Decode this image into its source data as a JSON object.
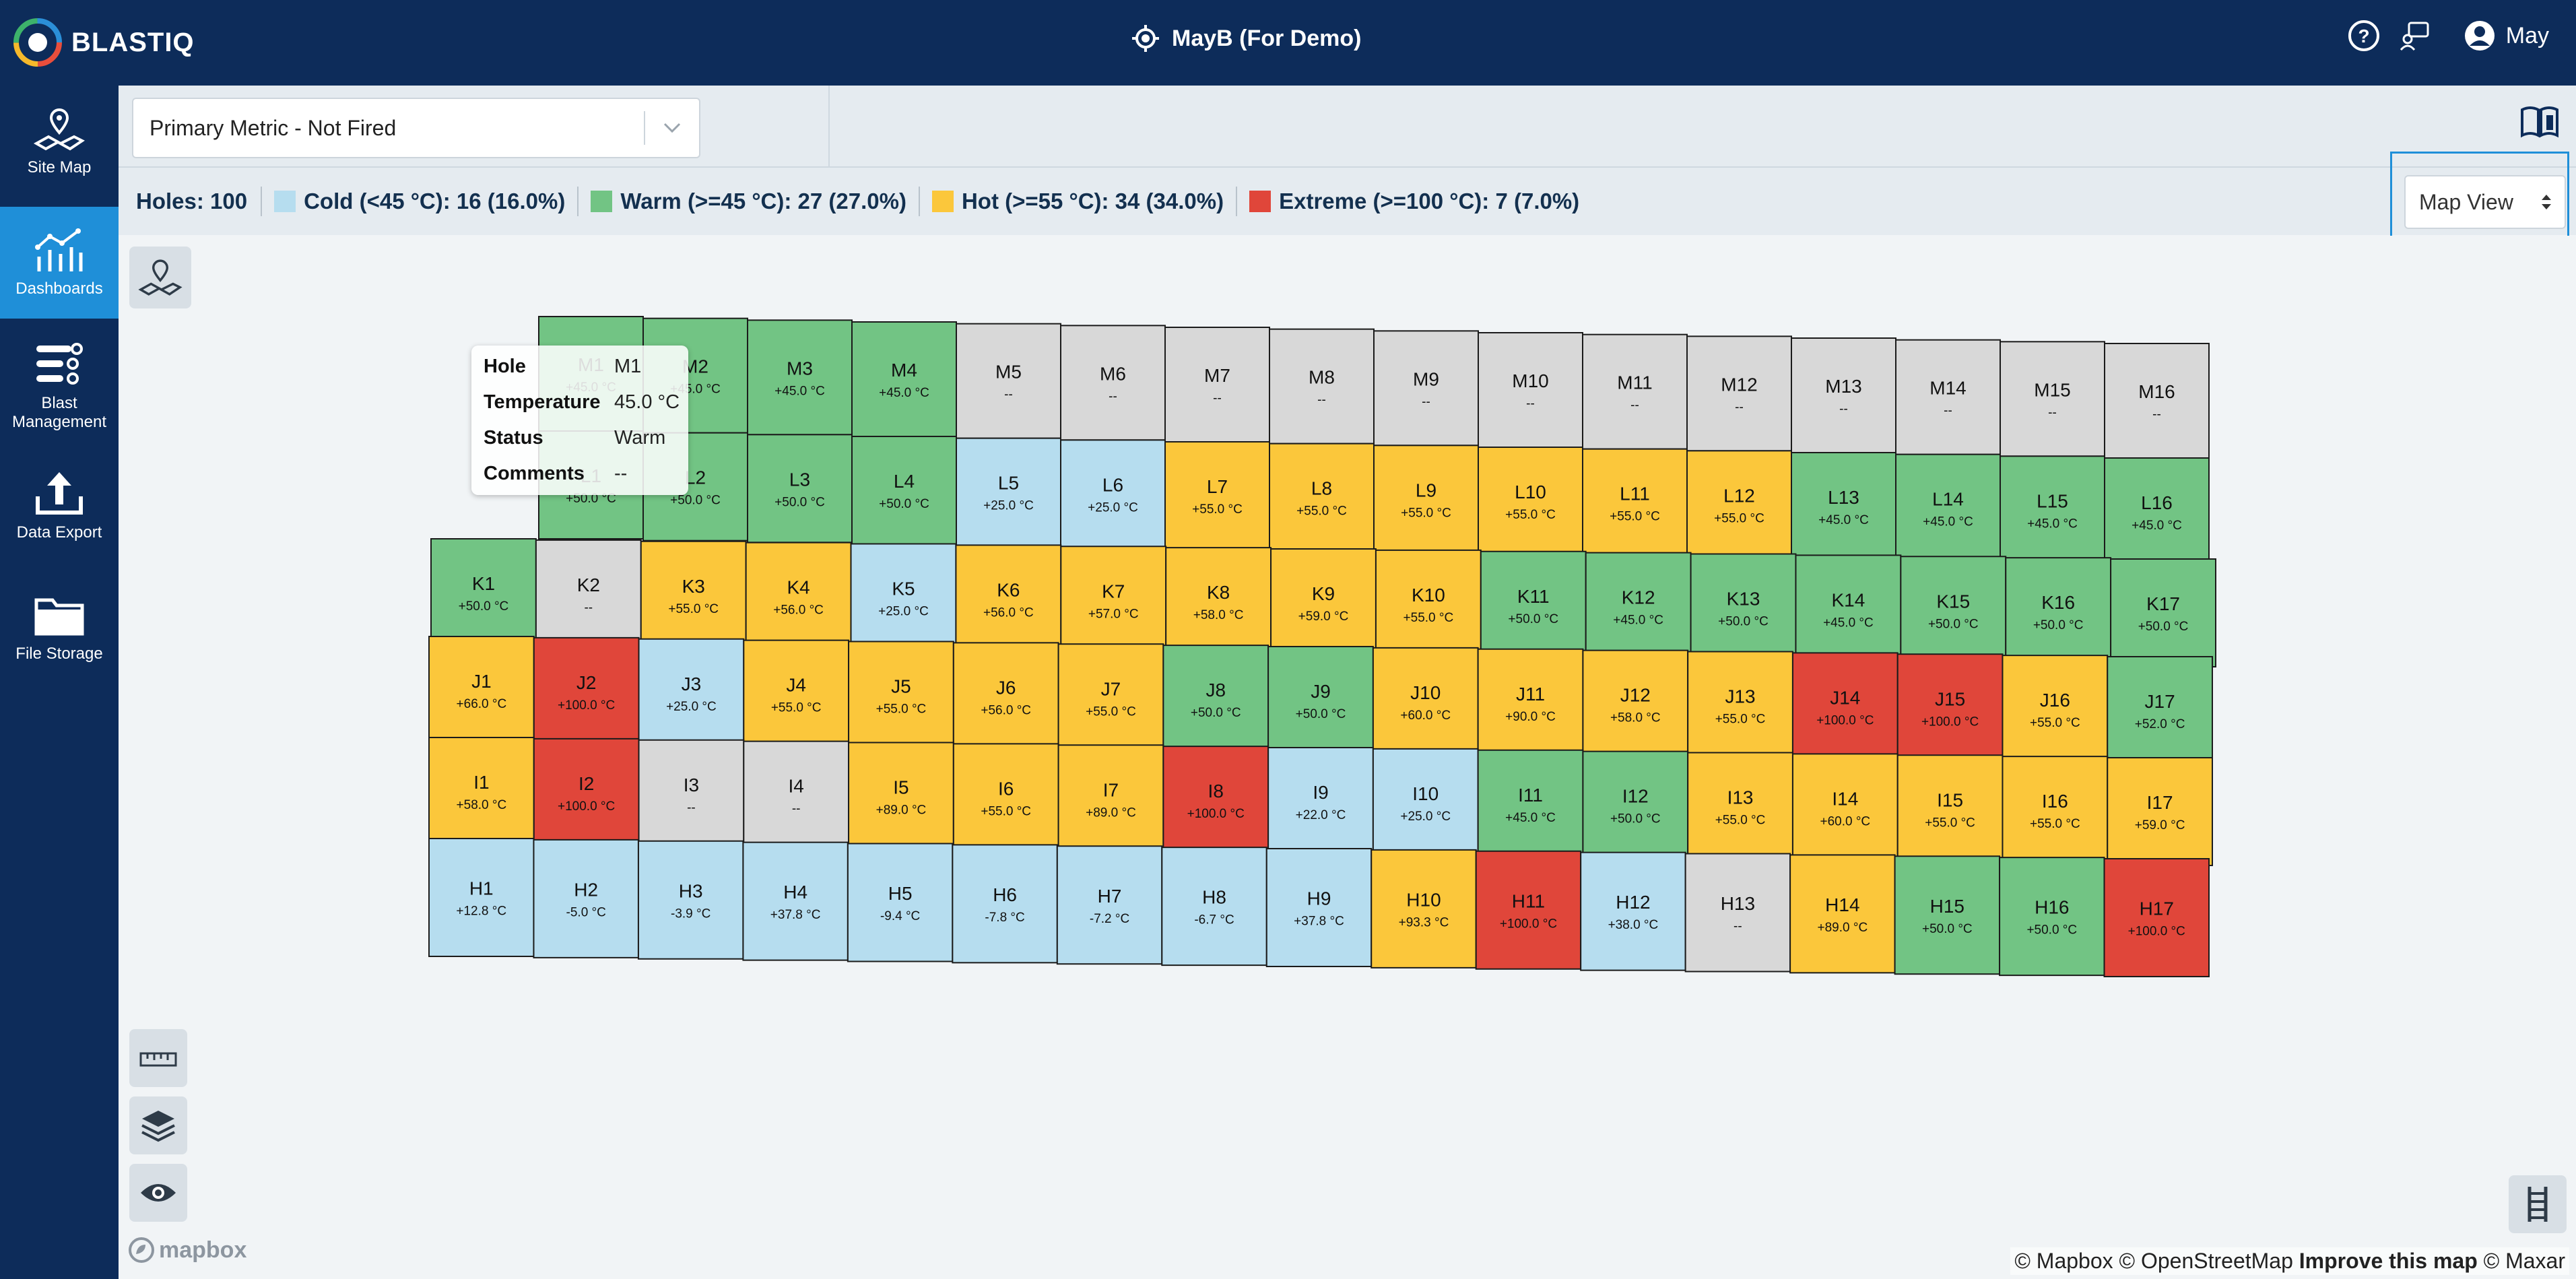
{
  "app": {
    "brand": "BLASTIQ",
    "site_title": "MayB (For Demo)",
    "user": "May"
  },
  "colors": {
    "navy": "#0d2c5a",
    "active": "#1f8fd8",
    "cold": "#b6ddef",
    "warm": "#72c484",
    "hot": "#fbc73b",
    "extreme": "#e0463a",
    "none": "#d8d8d8"
  },
  "sidebar": {
    "items": [
      {
        "label": "Site Map",
        "icon": "map-pin-icon"
      },
      {
        "label": "Dashboards",
        "icon": "chart-icon"
      },
      {
        "label": "Blast Management",
        "icon": "list-settings-icon"
      },
      {
        "label": "Data Export",
        "icon": "upload-icon"
      },
      {
        "label": "File Storage",
        "icon": "folder-icon"
      }
    ]
  },
  "toolbar": {
    "metric_select": "Primary Metric - Not Fired"
  },
  "legend": {
    "holes": "Holes: 100",
    "cold": "Cold (<45 °C): 16 (16.0%)",
    "warm": "Warm (>=45 °C): 27 (27.0%)",
    "hot": "Hot (>=55 °C): 34 (34.0%)",
    "extreme": "Extreme (>=100 °C): 7 (7.0%)"
  },
  "view_select": "Map View",
  "tooltip": {
    "hole_label": "Hole",
    "hole": "M1",
    "temp_label": "Temperature",
    "temp": "45.0 °C",
    "status_label": "Status",
    "status": "Warm",
    "comments_label": "Comments",
    "comments": "--"
  },
  "rows": [
    {
      "row": "M",
      "cells": [
        [
          "M1",
          "+45.0 °C",
          "warm"
        ],
        [
          "M2",
          "+45.0 °C",
          "warm"
        ],
        [
          "M3",
          "+45.0 °C",
          "warm"
        ],
        [
          "M4",
          "+45.0 °C",
          "warm"
        ],
        [
          "M5",
          "--",
          "none"
        ],
        [
          "M6",
          "--",
          "none"
        ],
        [
          "M7",
          "--",
          "none"
        ],
        [
          "M8",
          "--",
          "none"
        ],
        [
          "M9",
          "--",
          "none"
        ],
        [
          "M10",
          "--",
          "none"
        ],
        [
          "M11",
          "--",
          "none"
        ],
        [
          "M12",
          "--",
          "none"
        ],
        [
          "M13",
          "--",
          "none"
        ],
        [
          "M14",
          "--",
          "none"
        ],
        [
          "M15",
          "--",
          "none"
        ],
        [
          "M16",
          "--",
          "none"
        ]
      ]
    },
    {
      "row": "L",
      "cells": [
        [
          "L1",
          "+50.0 °C",
          "warm"
        ],
        [
          "L2",
          "+50.0 °C",
          "warm"
        ],
        [
          "L3",
          "+50.0 °C",
          "warm"
        ],
        [
          "L4",
          "+50.0 °C",
          "warm"
        ],
        [
          "L5",
          "+25.0 °C",
          "cold"
        ],
        [
          "L6",
          "+25.0 °C",
          "cold"
        ],
        [
          "L7",
          "+55.0 °C",
          "hot"
        ],
        [
          "L8",
          "+55.0 °C",
          "hot"
        ],
        [
          "L9",
          "+55.0 °C",
          "hot"
        ],
        [
          "L10",
          "+55.0 °C",
          "hot"
        ],
        [
          "L11",
          "+55.0 °C",
          "hot"
        ],
        [
          "L12",
          "+55.0 °C",
          "hot"
        ],
        [
          "L13",
          "+45.0 °C",
          "warm"
        ],
        [
          "L14",
          "+45.0 °C",
          "warm"
        ],
        [
          "L15",
          "+45.0 °C",
          "warm"
        ],
        [
          "L16",
          "+45.0 °C",
          "warm"
        ]
      ]
    },
    {
      "row": "K",
      "cells": [
        [
          "K1",
          "+50.0 °C",
          "warm"
        ],
        [
          "K2",
          "--",
          "none"
        ],
        [
          "K3",
          "+55.0 °C",
          "hot"
        ],
        [
          "K4",
          "+56.0 °C",
          "hot"
        ],
        [
          "K5",
          "+25.0 °C",
          "cold"
        ],
        [
          "K6",
          "+56.0 °C",
          "hot"
        ],
        [
          "K7",
          "+57.0 °C",
          "hot"
        ],
        [
          "K8",
          "+58.0 °C",
          "hot"
        ],
        [
          "K9",
          "+59.0 °C",
          "hot"
        ],
        [
          "K10",
          "+55.0 °C",
          "hot"
        ],
        [
          "K11",
          "+50.0 °C",
          "warm"
        ],
        [
          "K12",
          "+45.0 °C",
          "warm"
        ],
        [
          "K13",
          "+50.0 °C",
          "warm"
        ],
        [
          "K14",
          "+45.0 °C",
          "warm"
        ],
        [
          "K15",
          "+50.0 °C",
          "warm"
        ],
        [
          "K16",
          "+50.0 °C",
          "warm"
        ],
        [
          "K17",
          "+50.0 °C",
          "warm"
        ]
      ]
    },
    {
      "row": "J",
      "cells": [
        [
          "J1",
          "+66.0 °C",
          "hot"
        ],
        [
          "J2",
          "+100.0 °C",
          "extreme"
        ],
        [
          "J3",
          "+25.0 °C",
          "cold"
        ],
        [
          "J4",
          "+55.0 °C",
          "hot"
        ],
        [
          "J5",
          "+55.0 °C",
          "hot"
        ],
        [
          "J6",
          "+56.0 °C",
          "hot"
        ],
        [
          "J7",
          "+55.0 °C",
          "hot"
        ],
        [
          "J8",
          "+50.0 °C",
          "warm"
        ],
        [
          "J9",
          "+50.0 °C",
          "warm"
        ],
        [
          "J10",
          "+60.0 °C",
          "hot"
        ],
        [
          "J11",
          "+90.0 °C",
          "hot"
        ],
        [
          "J12",
          "+58.0 °C",
          "hot"
        ],
        [
          "J13",
          "+55.0 °C",
          "hot"
        ],
        [
          "J14",
          "+100.0 °C",
          "extreme"
        ],
        [
          "J15",
          "+100.0 °C",
          "extreme"
        ],
        [
          "J16",
          "+55.0 °C",
          "hot"
        ],
        [
          "J17",
          "+52.0 °C",
          "warm"
        ]
      ]
    },
    {
      "row": "I",
      "cells": [
        [
          "I1",
          "+58.0 °C",
          "hot"
        ],
        [
          "I2",
          "+100.0 °C",
          "extreme"
        ],
        [
          "I3",
          "--",
          "none"
        ],
        [
          "I4",
          "--",
          "none"
        ],
        [
          "I5",
          "+89.0 °C",
          "hot"
        ],
        [
          "I6",
          "+55.0 °C",
          "hot"
        ],
        [
          "I7",
          "+89.0 °C",
          "hot"
        ],
        [
          "I8",
          "+100.0 °C",
          "extreme"
        ],
        [
          "I9",
          "+22.0 °C",
          "cold"
        ],
        [
          "I10",
          "+25.0 °C",
          "cold"
        ],
        [
          "I11",
          "+45.0 °C",
          "warm"
        ],
        [
          "I12",
          "+50.0 °C",
          "warm"
        ],
        [
          "I13",
          "+55.0 °C",
          "hot"
        ],
        [
          "I14",
          "+60.0 °C",
          "hot"
        ],
        [
          "I15",
          "+55.0 °C",
          "hot"
        ],
        [
          "I16",
          "+55.0 °C",
          "hot"
        ],
        [
          "I17",
          "+59.0 °C",
          "hot"
        ]
      ]
    },
    {
      "row": "H",
      "cells": [
        [
          "H1",
          "+12.8 °C",
          "cold"
        ],
        [
          "H2",
          "-5.0 °C",
          "cold"
        ],
        [
          "H3",
          "-3.9 °C",
          "cold"
        ],
        [
          "H4",
          "+37.8 °C",
          "cold"
        ],
        [
          "H5",
          "-9.4 °C",
          "cold"
        ],
        [
          "H6",
          "-7.8 °C",
          "cold"
        ],
        [
          "H7",
          "-7.2 °C",
          "cold"
        ],
        [
          "H8",
          "-6.7 °C",
          "cold"
        ],
        [
          "H9",
          "+37.8 °C",
          "cold"
        ],
        [
          "H10",
          "+93.3 °C",
          "hot"
        ],
        [
          "H11",
          "+100.0 °C",
          "extreme"
        ],
        [
          "H12",
          "+38.0 °C",
          "cold"
        ],
        [
          "H13",
          "--",
          "none"
        ],
        [
          "H14",
          "+89.0 °C",
          "hot"
        ],
        [
          "H15",
          "+50.0 °C",
          "warm"
        ],
        [
          "H16",
          "+50.0 °C",
          "warm"
        ],
        [
          "H17",
          "+100.0 °C",
          "extreme"
        ]
      ]
    }
  ],
  "map": {
    "mapbox_logo": "mapbox",
    "attribution_prefix": "© Mapbox © OpenStreetMap ",
    "attribution_link": "Improve this map",
    "attribution_suffix": " © Maxar"
  }
}
